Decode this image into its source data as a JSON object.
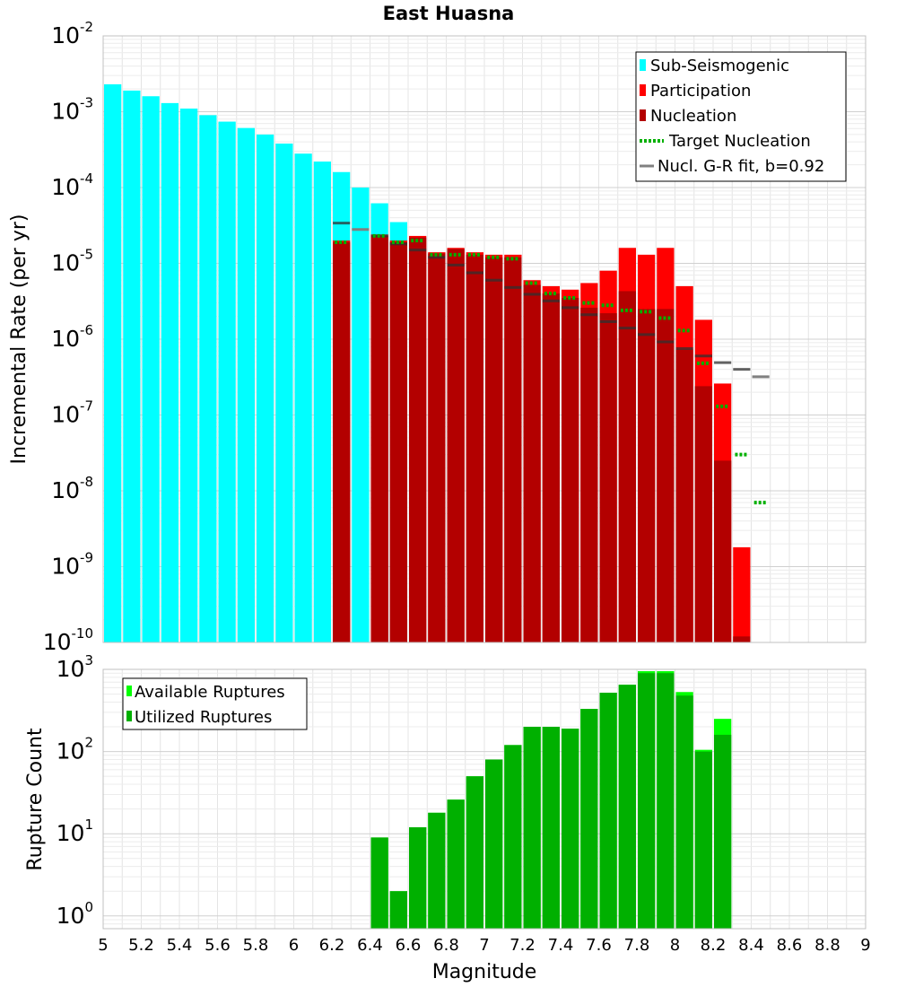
{
  "chart_data": [
    {
      "type": "bar",
      "title": "East Huasna",
      "ylabel": "Incremental Rate (per yr)",
      "yscale": "log",
      "xlim": [
        5,
        9
      ],
      "ylim": [
        1e-10,
        0.01
      ],
      "y_tick_labels": [
        {
          "exp": -10,
          "mantissa": "10",
          "sup": "-10"
        },
        {
          "exp": -9,
          "mantissa": "10",
          "sup": "-9"
        },
        {
          "exp": -8,
          "mantissa": "10",
          "sup": "-8"
        },
        {
          "exp": -7,
          "mantissa": "10",
          "sup": "-7"
        },
        {
          "exp": -6,
          "mantissa": "10",
          "sup": "-6"
        },
        {
          "exp": -5,
          "mantissa": "10",
          "sup": "-5"
        },
        {
          "exp": -4,
          "mantissa": "10",
          "sup": "-4"
        },
        {
          "exp": -3,
          "mantissa": "10",
          "sup": "-3"
        },
        {
          "exp": -2,
          "mantissa": "10",
          "sup": "-2"
        }
      ],
      "grid": true,
      "legend_position": "top-right",
      "legend": [
        {
          "label": "Sub-Seismogenic",
          "color": "#00FFFF",
          "style": "bar"
        },
        {
          "label": "Participation",
          "color": "#FF0000",
          "style": "bar"
        },
        {
          "label": "Nucleation",
          "color": "#B30000",
          "style": "bar"
        },
        {
          "label": "Target Nucleation",
          "color": "#00B000",
          "style": "dotted"
        },
        {
          "label": "Nucl. G-R fit, b=0.92",
          "color": "#808080",
          "style": "line"
        }
      ],
      "bar_width": 0.1,
      "series": [
        {
          "name": "Sub-Seismogenic",
          "color": "#00FFFF",
          "x": [
            5.05,
            5.15,
            5.25,
            5.35,
            5.45,
            5.55,
            5.65,
            5.75,
            5.85,
            5.95,
            6.05,
            6.15,
            6.25,
            6.35,
            6.45,
            6.55
          ],
          "values": [
            0.0023,
            0.0019,
            0.0016,
            0.0013,
            0.0011,
            0.0009,
            0.00074,
            0.00061,
            0.0005,
            0.00038,
            0.00028,
            0.00022,
            0.00016,
            0.0001,
            6.2e-05,
            3.5e-05
          ]
        },
        {
          "name": "Participation",
          "color": "#FF0000",
          "x": [
            6.25,
            6.45,
            6.55,
            6.65,
            6.75,
            6.85,
            6.95,
            7.05,
            7.15,
            7.25,
            7.35,
            7.45,
            7.55,
            7.65,
            7.75,
            7.85,
            7.95,
            8.05,
            8.15,
            8.25,
            8.35
          ],
          "values": [
            2e-05,
            2.4e-05,
            2e-05,
            2.3e-05,
            1.4e-05,
            1.6e-05,
            1.4e-05,
            1.3e-05,
            1.3e-05,
            6e-06,
            5e-06,
            4.5e-06,
            5.5e-06,
            8e-06,
            1.6e-05,
            1.3e-05,
            1.6e-05,
            5e-06,
            1.8e-06,
            2.6e-07,
            1.8e-09
          ]
        },
        {
          "name": "Nucleation",
          "color": "#B30000",
          "x": [
            6.25,
            6.45,
            6.55,
            6.65,
            6.75,
            6.85,
            6.95,
            7.05,
            7.15,
            7.25,
            7.35,
            7.45,
            7.55,
            7.65,
            7.75,
            7.85,
            7.95,
            8.05,
            8.15,
            8.25,
            8.35
          ],
          "values": [
            1.9e-05,
            2.3e-05,
            1.9e-05,
            2.2e-05,
            1.35e-05,
            1.55e-05,
            1.3e-05,
            1.2e-05,
            1.2e-05,
            5.2e-06,
            4e-06,
            3.5e-06,
            2.6e-06,
            2.2e-06,
            4.3e-06,
            2.5e-06,
            2.5e-06,
            7.3e-07,
            2.4e-07,
            2.5e-08,
            1.2e-10
          ]
        },
        {
          "name": "Target Nucleation",
          "color": "#00B000",
          "style": "dotted",
          "x": [
            6.25,
            6.45,
            6.55,
            6.65,
            6.75,
            6.85,
            6.95,
            7.05,
            7.15,
            7.25,
            7.35,
            7.45,
            7.55,
            7.65,
            7.75,
            7.85,
            7.95,
            8.05,
            8.15,
            8.25,
            8.35,
            8.45
          ],
          "values": [
            1.9e-05,
            2.3e-05,
            1.9e-05,
            2e-05,
            1.3e-05,
            1.3e-05,
            1.3e-05,
            1.2e-05,
            1.15e-05,
            5.5e-06,
            4e-06,
            3.5e-06,
            3e-06,
            2.8e-06,
            2.4e-06,
            2.3e-06,
            1.9e-06,
            1.3e-06,
            4.8e-07,
            1.3e-07,
            3e-08,
            7e-09
          ]
        },
        {
          "name": "Nucl. G-R fit, b=0.92",
          "color": "#808080",
          "style": "line",
          "x": [
            6.25,
            6.35,
            6.45,
            6.55,
            6.65,
            6.75,
            6.85,
            6.95,
            7.05,
            7.15,
            7.25,
            7.35,
            7.45,
            7.55,
            7.65,
            7.75,
            7.85,
            7.95,
            8.05,
            8.15,
            8.25,
            8.35,
            8.45
          ],
          "values": [
            3.4e-05,
            2.8e-05,
            2.3e-05,
            1.8e-05,
            1.5e-05,
            1.2e-05,
            9.5e-06,
            7.5e-06,
            6e-06,
            4.8e-06,
            3.9e-06,
            3.2e-06,
            2.6e-06,
            2.1e-06,
            1.7e-06,
            1.4e-06,
            1.15e-06,
            9.2e-07,
            7.5e-07,
            6e-07,
            4.9e-07,
            4e-07,
            3.2e-07
          ]
        }
      ]
    },
    {
      "type": "bar",
      "ylabel": "Rupture Count",
      "xlabel": "Magnitude",
      "yscale": "log",
      "xlim": [
        5,
        9
      ],
      "ylim": [
        0.7,
        1000
      ],
      "y_tick_labels": [
        {
          "exp": 0,
          "mantissa": "10",
          "sup": "0"
        },
        {
          "exp": 1,
          "mantissa": "10",
          "sup": "1"
        },
        {
          "exp": 2,
          "mantissa": "10",
          "sup": "2"
        },
        {
          "exp": 3,
          "mantissa": "10",
          "sup": "3"
        }
      ],
      "x_tick_labels": [
        "5",
        "5.2",
        "5.4",
        "5.6",
        "5.8",
        "6",
        "6.2",
        "6.4",
        "6.6",
        "6.8",
        "7",
        "7.2",
        "7.4",
        "7.6",
        "7.8",
        "8",
        "8.2",
        "8.4",
        "8.6",
        "8.8",
        "9"
      ],
      "grid": true,
      "legend_position": "top-left",
      "legend": [
        {
          "label": "Available Ruptures",
          "color": "#00FF00"
        },
        {
          "label": "Utilized Ruptures",
          "color": "#00B000"
        }
      ],
      "bar_width": 0.1,
      "series": [
        {
          "name": "Available Ruptures",
          "color": "#00FF00",
          "x": [
            6.45,
            6.55,
            6.65,
            6.75,
            6.85,
            6.95,
            7.05,
            7.15,
            7.25,
            7.35,
            7.45,
            7.55,
            7.65,
            7.75,
            7.85,
            7.95,
            8.05,
            8.15,
            8.25
          ],
          "values": [
            9,
            2,
            12,
            18,
            26,
            50,
            80,
            120,
            200,
            200,
            190,
            330,
            520,
            650,
            950,
            950,
            530,
            105,
            250
          ]
        },
        {
          "name": "Utilized Ruptures",
          "color": "#00B000",
          "x": [
            6.45,
            6.55,
            6.65,
            6.75,
            6.85,
            6.95,
            7.05,
            7.15,
            7.25,
            7.35,
            7.45,
            7.55,
            7.65,
            7.75,
            7.85,
            7.95,
            8.05,
            8.15,
            8.25
          ],
          "values": [
            9,
            2,
            12,
            18,
            26,
            50,
            80,
            120,
            200,
            200,
            190,
            330,
            520,
            650,
            900,
            900,
            480,
            100,
            160
          ]
        }
      ]
    }
  ]
}
